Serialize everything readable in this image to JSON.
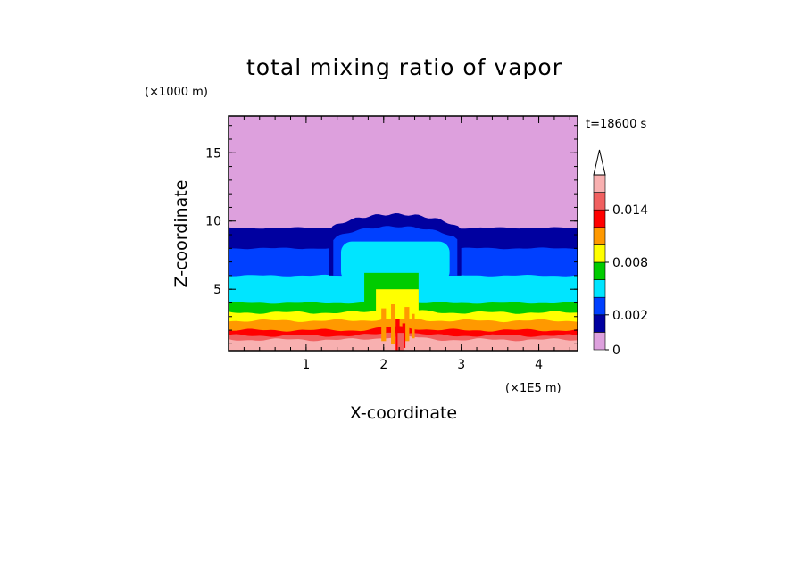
{
  "chart_data": {
    "type": "heatmap",
    "title": "total mixing ratio of vapor",
    "xlabel": "X-coordinate",
    "ylabel": "Z-coordinate",
    "x_unit": "(×1E5 m)",
    "y_unit": "(×1000 m)",
    "time_label": "t=18600 s",
    "xlim": [
      0.0,
      4.5
    ],
    "ylim": [
      0.5,
      17.7
    ],
    "x_ticks": [
      {
        "value": 1,
        "label": "1"
      },
      {
        "value": 2,
        "label": "2"
      },
      {
        "value": 3,
        "label": "3"
      },
      {
        "value": 4,
        "label": "4"
      }
    ],
    "y_ticks": [
      {
        "value": 5,
        "label": "5"
      },
      {
        "value": 10,
        "label": "10"
      },
      {
        "value": 15,
        "label": "15"
      }
    ],
    "colorbar": {
      "levels": [
        0,
        0.001,
        0.002,
        0.004,
        0.006,
        0.008,
        0.01,
        0.012,
        0.014,
        0.016
      ],
      "colors": [
        "#dda0dd",
        "#0000a0",
        "#0040ff",
        "#00e5ff",
        "#00cc00",
        "#ffff00",
        "#ff9900",
        "#ff0000",
        "#f06060",
        "#f8b0b0"
      ],
      "labels": [
        {
          "value": 0,
          "label": "0"
        },
        {
          "value": 0.002,
          "label": "0.002"
        },
        {
          "value": 0.008,
          "label": "0.008"
        },
        {
          "value": 0.014,
          "label": "0.014"
        }
      ],
      "extend": "max"
    },
    "contour_bands": [
      {
        "level": "0-0.001",
        "color": "#dda0dd",
        "z_bottom": 9.5,
        "z_top": 17.7,
        "note": "uppermost dry layer; dome top near x=2.15 at z~10.5"
      },
      {
        "level": "0.001-0.002",
        "color": "#0000a0",
        "z_bottom": 8.0,
        "z_top": 9.5
      },
      {
        "level": "0.002-0.004",
        "color": "#0040ff",
        "z_bottom": 6.0,
        "z_top": 8.0
      },
      {
        "level": "0.004-0.006",
        "color": "#00e5ff",
        "z_bottom": 4.0,
        "z_top": 6.0
      },
      {
        "level": "0.006-0.008",
        "color": "#00cc00",
        "z_bottom": 3.3,
        "z_top": 4.0
      },
      {
        "level": "0.008-0.010",
        "color": "#ffff00",
        "z_bottom": 2.7,
        "z_top": 3.3
      },
      {
        "level": "0.010-0.012",
        "color": "#ff9900",
        "z_bottom": 2.0,
        "z_top": 2.7
      },
      {
        "level": "0.012-0.014",
        "color": "#ff0000",
        "z_bottom": 1.6,
        "z_top": 2.0
      },
      {
        "level": "0.014-0.016",
        "color": "#f06060",
        "z_bottom": 1.3,
        "z_top": 1.6
      },
      {
        "level": ">0.016",
        "color": "#f8b0b0",
        "z_bottom": 0.5,
        "z_top": 1.3
      }
    ],
    "plume": {
      "center_x": 2.15,
      "blue_dome": {
        "x_range": [
          1.35,
          2.95
        ],
        "top_z": 10.5
      },
      "cyan_mushroom": {
        "x_range": [
          1.45,
          2.85
        ],
        "z_range": [
          5.5,
          8.5
        ]
      },
      "cyan_stem": {
        "x_range": [
          1.75,
          2.55
        ],
        "z_range": [
          4.0,
          6.2
        ]
      },
      "green_column": {
        "x_range": [
          1.75,
          2.45
        ],
        "z_range": [
          3.5,
          6.2
        ]
      },
      "yellow_core": {
        "x_range": [
          1.9,
          2.45
        ],
        "z_range": [
          2.8,
          5.0
        ]
      }
    }
  }
}
